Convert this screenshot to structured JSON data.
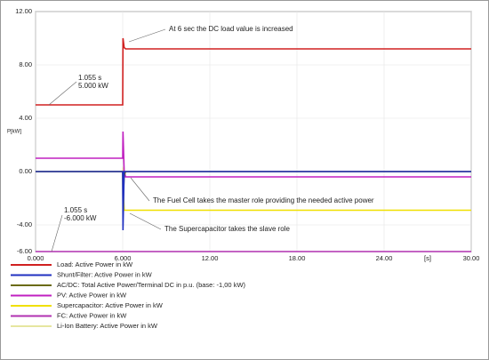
{
  "chart_data": {
    "type": "line",
    "y_label": "P[kW]",
    "x_unit": "[s]",
    "x": [
      0,
      6,
      6.02,
      6.1,
      6.2,
      30
    ],
    "series": [
      {
        "name": "Load: Active Power in kW",
        "color": "#d02020",
        "values": [
          5,
          5,
          10,
          9.3,
          9.2,
          9.2
        ]
      },
      {
        "name": "Shunt/Filter: Active Power in kW",
        "color": "#2030c0",
        "values": [
          0,
          0,
          -4.4,
          0,
          0,
          0
        ]
      },
      {
        "name": "AC/DC: Total Active Power/Terminal DC in p.u. (base: -1,00 kW)",
        "color": "#6b6b10",
        "values": [
          0,
          0,
          -2.5,
          -0.3,
          0,
          0
        ]
      },
      {
        "name": "PV: Active Power in kW",
        "color": "#c020c0",
        "values": [
          1,
          1,
          3,
          0,
          -0.4,
          -0.4
        ]
      },
      {
        "name": "Supercapacitor: Active Power in kW",
        "color": "#f0e000",
        "values": [
          0,
          0,
          -1,
          -2.9,
          -2.9,
          -2.9
        ]
      },
      {
        "name": "FC: Active Power in kW",
        "color": "#b030b0",
        "values": [
          -6,
          -6,
          -6,
          -6,
          -6,
          -6
        ]
      },
      {
        "name": "Li-Ion Battery: Active Power in kW",
        "color": "#e6e6a0",
        "values": [
          0,
          0,
          0.2,
          0,
          0,
          0
        ]
      }
    ],
    "xlim": [
      0,
      30
    ],
    "xticks": [
      {
        "value": 0,
        "label": "0.000"
      },
      {
        "value": 6,
        "label": "6.000"
      },
      {
        "value": 12,
        "label": "12.00"
      },
      {
        "value": 18,
        "label": "18.00"
      },
      {
        "value": 24,
        "label": "24.00"
      },
      {
        "value": 30,
        "label": "30.00"
      }
    ],
    "ylim": [
      -6,
      12
    ],
    "yticks": [
      {
        "value": -6,
        "label": "-6.00"
      },
      {
        "value": -4,
        "label": "-4.00"
      },
      {
        "value": 0,
        "label": "0.00"
      },
      {
        "value": 4,
        "label": "4.00"
      },
      {
        "value": 8,
        "label": "8.00"
      },
      {
        "value": 12,
        "label": "12.00"
      }
    ],
    "grid": true,
    "annotations": [
      "At 6 sec the DC load value is increased",
      "The Fuel Cell takes the master role providing the needed active power",
      "The Supercapacitor takes the slave role",
      "1.055 s",
      "5.000 kW",
      "1.055 s",
      "-6.000 kW"
    ]
  }
}
